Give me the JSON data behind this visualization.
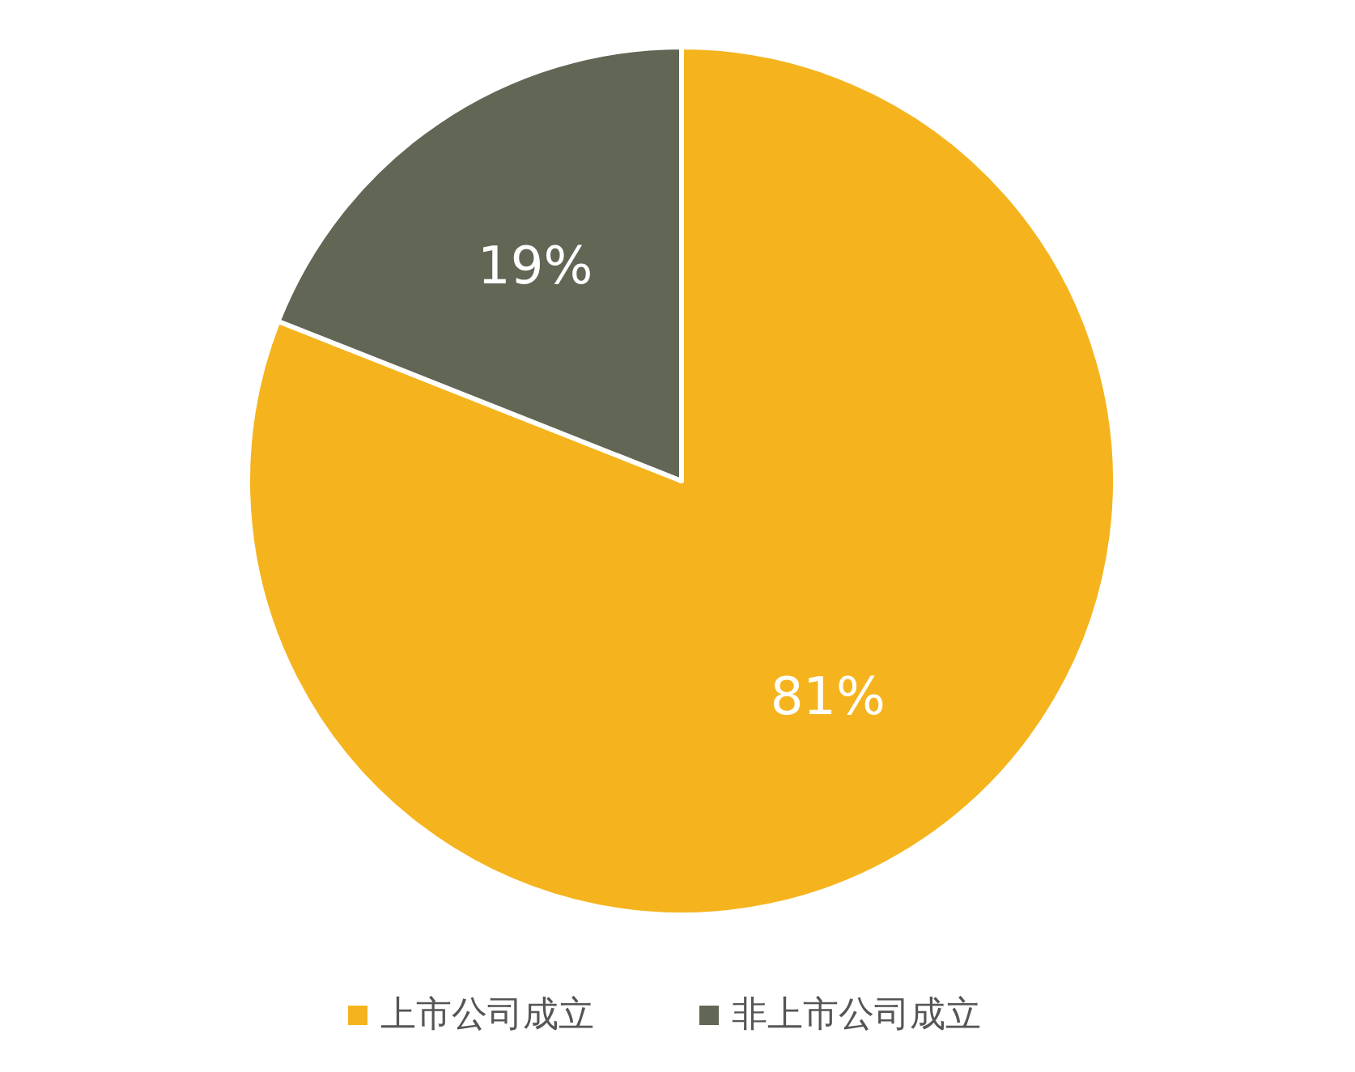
{
  "chart_data": {
    "type": "pie",
    "categories": [
      "上市公司成立",
      "非上市公司成立"
    ],
    "values": [
      81,
      19
    ],
    "colors": [
      "#f5b41e",
      "#626655"
    ],
    "value_labels": [
      "81%",
      "19%"
    ],
    "legend": "bottom"
  }
}
